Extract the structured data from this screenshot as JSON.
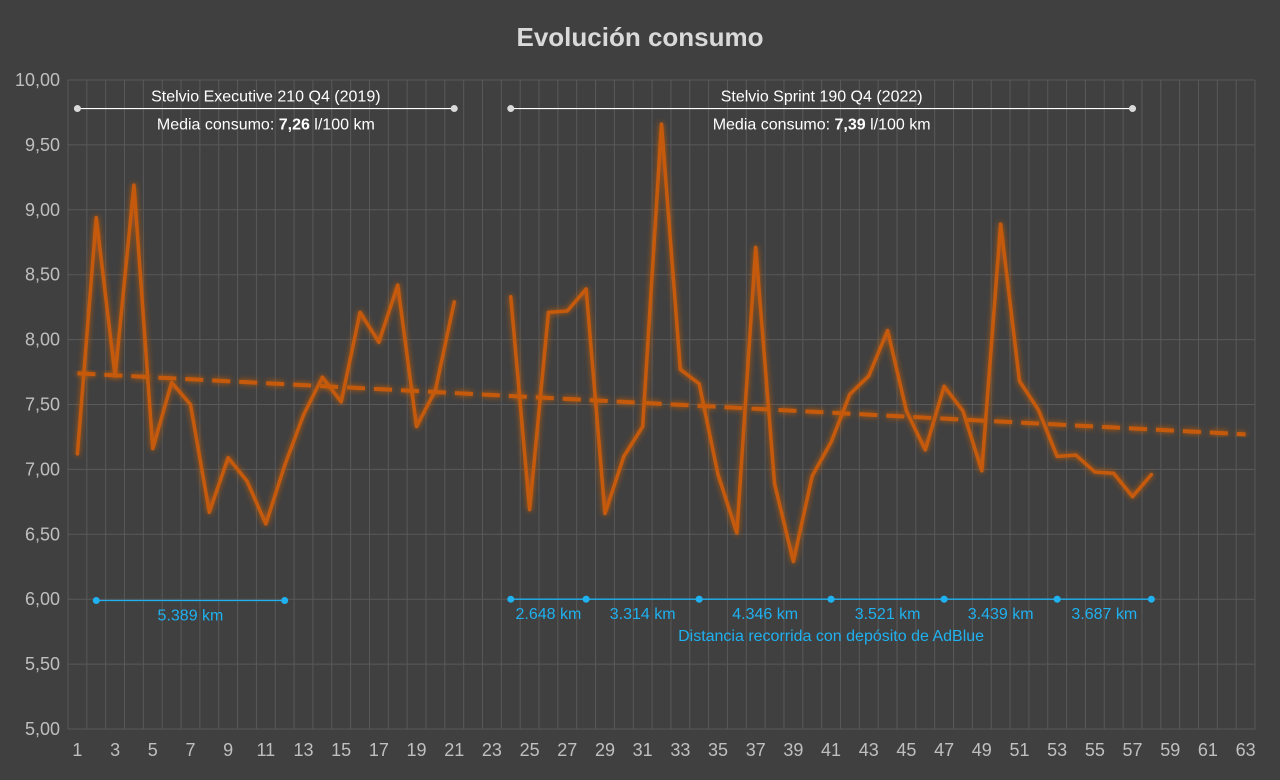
{
  "chart_data": {
    "type": "line",
    "title": "Evolución consumo",
    "xlabel": "",
    "ylabel": "",
    "xlim": [
      1,
      63
    ],
    "ylim": [
      5,
      10
    ],
    "grid": true,
    "y_ticks": [
      "5,00",
      "5,50",
      "6,00",
      "6,50",
      "7,00",
      "7,50",
      "8,00",
      "8,50",
      "9,00",
      "9,50",
      "10,00"
    ],
    "x_ticks": [
      1,
      3,
      5,
      7,
      9,
      11,
      13,
      15,
      17,
      19,
      21,
      23,
      25,
      27,
      29,
      31,
      33,
      35,
      37,
      39,
      41,
      43,
      45,
      47,
      49,
      51,
      53,
      55,
      57,
      59,
      61,
      63
    ],
    "series": [
      {
        "x": [
          1,
          2,
          3,
          4,
          5,
          6,
          7,
          8,
          9,
          10,
          11,
          12,
          13,
          14,
          15,
          16,
          17,
          18,
          19,
          20,
          21
        ],
        "values": [
          7.12,
          8.94,
          7.72,
          9.19,
          7.16,
          7.67,
          7.5,
          6.67,
          7.09,
          6.91,
          6.58,
          7.03,
          7.42,
          7.71,
          7.52,
          8.21,
          7.98,
          8.42,
          7.33,
          7.61,
          8.29
        ]
      },
      {
        "x": [
          24,
          25,
          26,
          27,
          28,
          29,
          30,
          31,
          32,
          33,
          34,
          35,
          36,
          37,
          38,
          39,
          40,
          41,
          42,
          43,
          44,
          45,
          46,
          47,
          48,
          49,
          50,
          51,
          52,
          53,
          54,
          55,
          56,
          57,
          58
        ],
        "values": [
          8.33,
          6.69,
          8.21,
          8.22,
          8.39,
          6.66,
          7.1,
          7.33,
          9.66,
          7.77,
          7.66,
          6.96,
          6.51,
          8.71,
          6.89,
          6.29,
          6.95,
          7.21,
          7.58,
          7.72,
          8.07,
          7.45,
          7.15,
          7.64,
          7.45,
          6.99,
          8.89,
          7.68,
          7.46,
          7.1,
          7.11,
          6.98,
          6.97,
          6.79,
          6.96
        ]
      }
    ],
    "trendline": {
      "x": [
        1,
        63
      ],
      "values": [
        7.74,
        7.27
      ]
    },
    "colors": {
      "series": "#c55a11",
      "trend": "#c55a11",
      "distance": "#1fb1f0",
      "annotation": "#ffffff",
      "grid": "#595959",
      "background": "#404040"
    },
    "annotations": {
      "car1": {
        "name": "Stelvio Executive 210 Q4 (2019)",
        "consumption_prefix": "Media consumo: ",
        "consumption_value": "7,26",
        "consumption_suffix": " l/100 km",
        "span": [
          1,
          21
        ],
        "y": 9.78
      },
      "car2": {
        "name": "Stelvio Sprint 190 Q4 (2022)",
        "consumption_prefix": "Media consumo: ",
        "consumption_value": "7,39",
        "consumption_suffix": " l/100 km",
        "span": [
          24,
          57
        ],
        "y": 9.78
      }
    },
    "distances": {
      "caption": "Distancia recorrida con depósito de AdBlue",
      "segments": [
        {
          "from": 2,
          "to": 12,
          "y": 5.99,
          "label": "5.389 km"
        },
        {
          "from": 24,
          "to": 28,
          "y": 6.0,
          "label": "2.648 km"
        },
        {
          "from": 28,
          "to": 34,
          "y": 6.0,
          "label": "3.314 km"
        },
        {
          "from": 34,
          "to": 41,
          "y": 6.0,
          "label": "4.346 km"
        },
        {
          "from": 41,
          "to": 47,
          "y": 6.0,
          "label": "3.521 km"
        },
        {
          "from": 47,
          "to": 53,
          "y": 6.0,
          "label": "3.439 km"
        },
        {
          "from": 53,
          "to": 58,
          "y": 6.0,
          "label": "3.687 km"
        }
      ]
    }
  }
}
